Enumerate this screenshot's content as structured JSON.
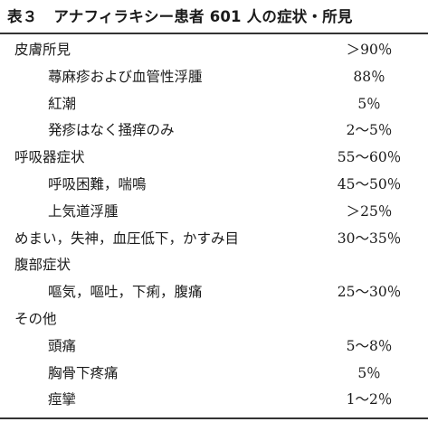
{
  "table": {
    "number": "表３",
    "title": "アナフィラキシー患者 601 人の症状・所見",
    "rows": [
      {
        "label": "皮膚所見",
        "value": "＞90％",
        "level": "cat"
      },
      {
        "label": "蕁麻疹および血管性浮腫",
        "value": "88％",
        "level": "sub"
      },
      {
        "label": "紅潮",
        "value": "5％",
        "level": "sub"
      },
      {
        "label": "発疹はなく掻痒のみ",
        "value": "2～5％",
        "level": "sub"
      },
      {
        "label": "呼吸器症状",
        "value": "55～60％",
        "level": "cat"
      },
      {
        "label": "呼吸困難，喘鳴",
        "value": "45～50％",
        "level": "sub"
      },
      {
        "label": "上気道浮腫",
        "value": "＞25％",
        "level": "sub"
      },
      {
        "label": "めまい，失神，血圧低下，かすみ目",
        "value": "30～35％",
        "level": "cat"
      },
      {
        "label": "腹部症状",
        "value": "",
        "level": "cat"
      },
      {
        "label": "嘔気，嘔吐，下痢，腹痛",
        "value": "25～30％",
        "level": "sub"
      },
      {
        "label": "その他",
        "value": "",
        "level": "cat"
      },
      {
        "label": "頭痛",
        "value": "5～8％",
        "level": "sub"
      },
      {
        "label": "胸骨下疼痛",
        "value": "5％",
        "level": "sub"
      },
      {
        "label": "痙攣",
        "value": "1～2％",
        "level": "sub"
      }
    ]
  }
}
